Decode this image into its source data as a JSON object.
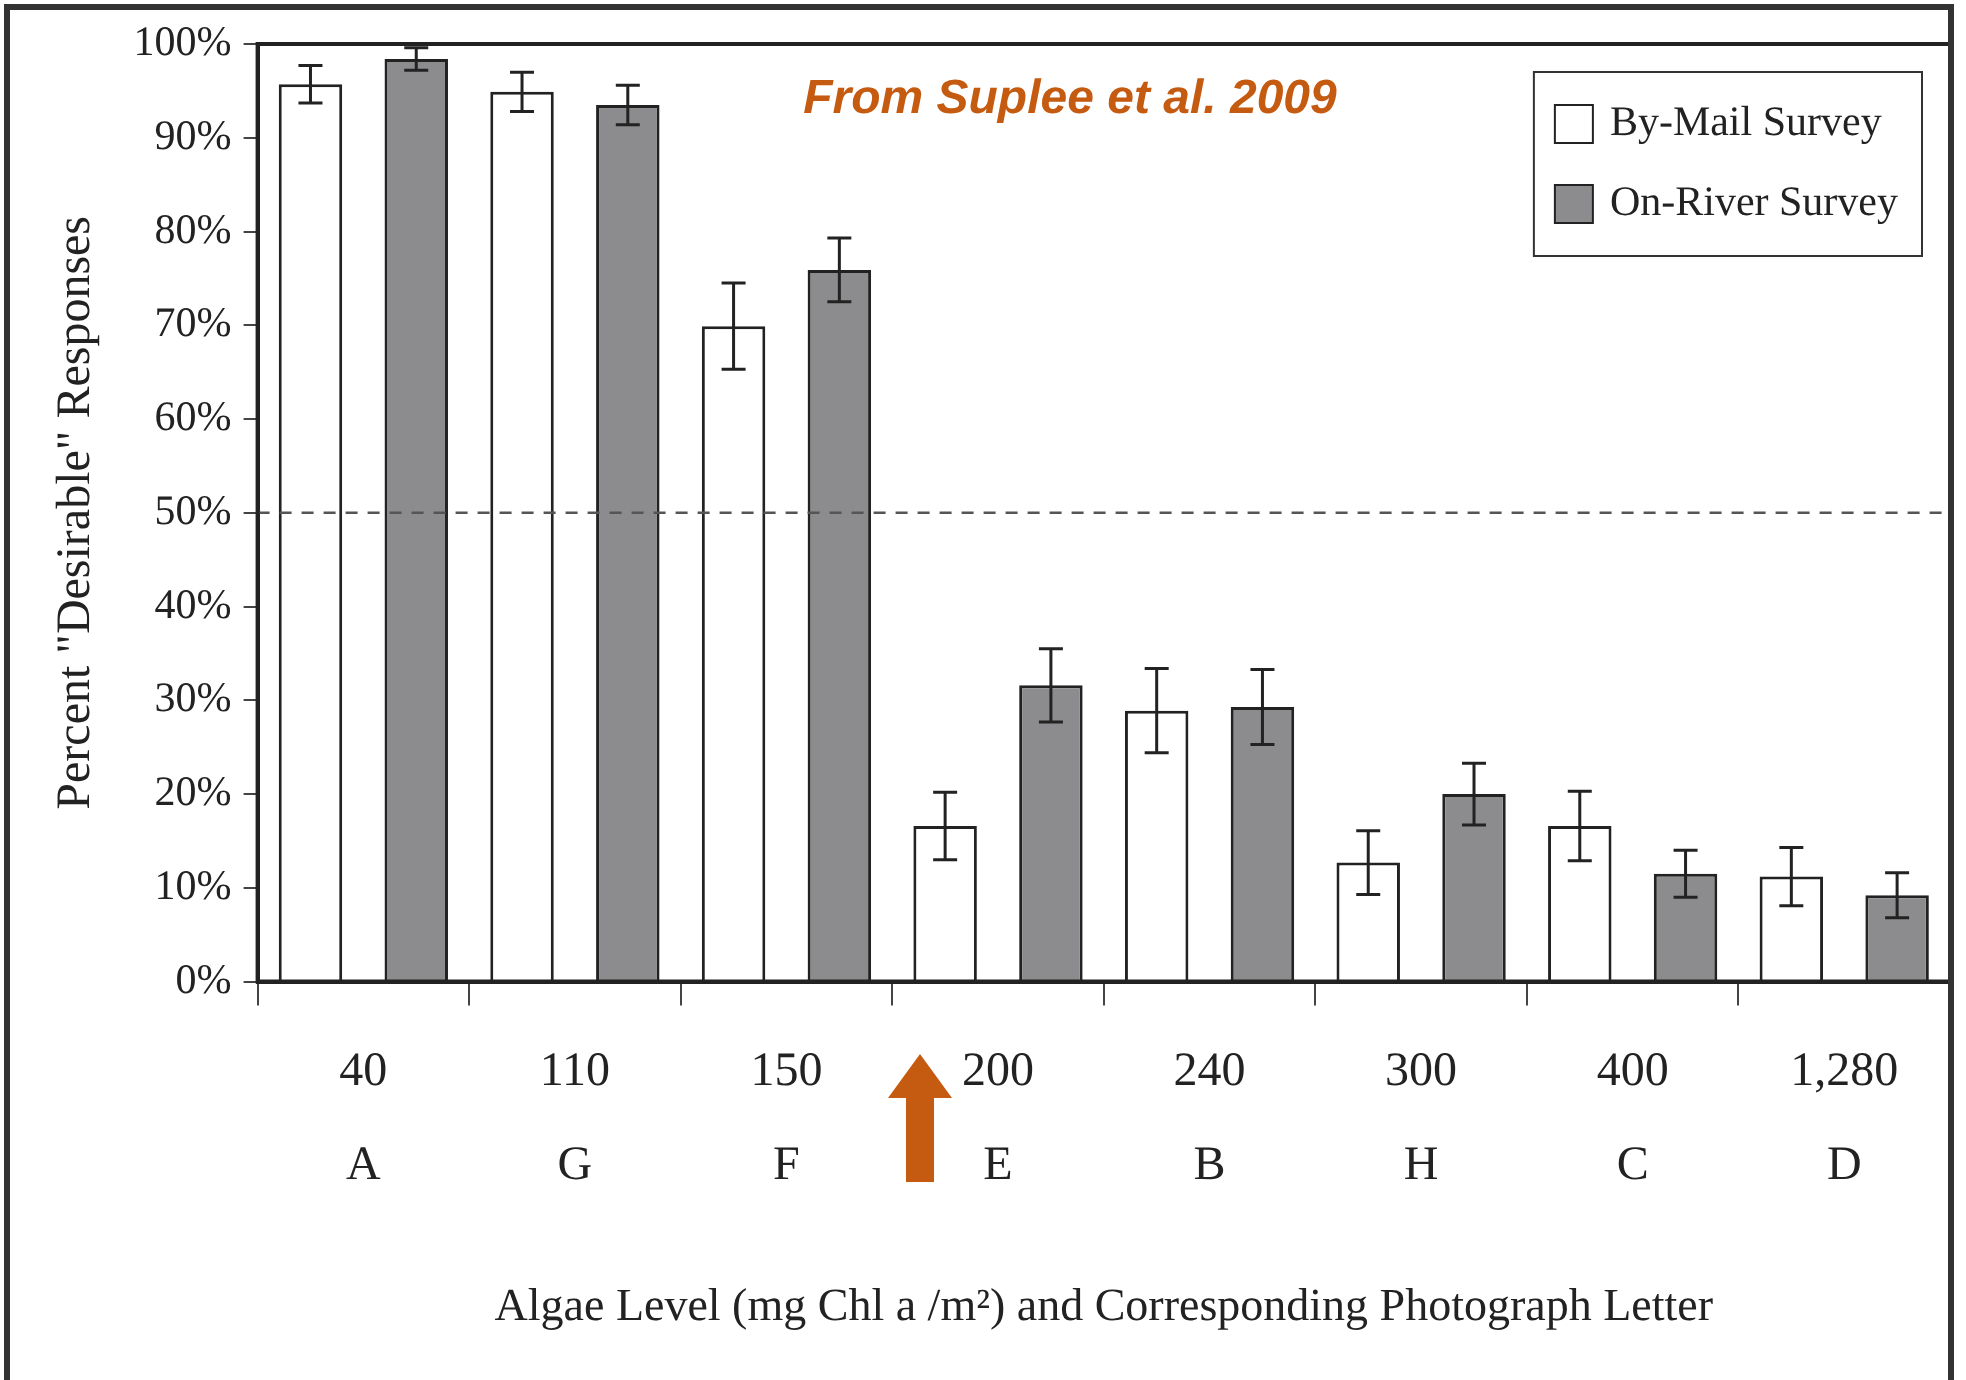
{
  "chart_data": {
    "type": "bar",
    "categories": [
      "40\nA",
      "110\nG",
      "150\nF",
      "200\nE",
      "240\nB",
      "300\nH",
      "400\nC",
      "1,280\nD"
    ],
    "series": [
      {
        "name": "By-Mail Survey",
        "color": "#ffffff",
        "values": [
          95.7,
          94.9,
          69.9,
          16.6,
          28.9,
          12.7,
          16.6,
          11.2
        ],
        "errors": [
          2,
          2.1,
          4.6,
          3.6,
          4.5,
          3.4,
          3.7,
          3.1
        ]
      },
      {
        "name": "On-River Survey",
        "color": "#8c8c8e",
        "values": [
          98.4,
          93.5,
          75.9,
          31.6,
          29.3,
          20.0,
          11.5,
          9.2
        ],
        "errors": [
          1.2,
          2.1,
          3.4,
          3.9,
          4,
          3.3,
          2.5,
          2.4
        ]
      }
    ],
    "ylabel": "Percent \"Desirable\" Responses",
    "xlabel": "Algae Level (mg Chl a /m²) and Corresponding Photograph Letter",
    "ylim": [
      0,
      100
    ],
    "yticks": [
      {
        "value": 0,
        "label": "0%"
      },
      {
        "value": 10,
        "label": "10%"
      },
      {
        "value": 20,
        "label": "20%"
      },
      {
        "value": 30,
        "label": "30%"
      },
      {
        "value": 40,
        "label": "40%"
      },
      {
        "value": 50,
        "label": "50%"
      },
      {
        "value": 60,
        "label": "60%"
      },
      {
        "value": 70,
        "label": "70%"
      },
      {
        "value": 80,
        "label": "80%"
      },
      {
        "value": 90,
        "label": "90%"
      },
      {
        "value": 100,
        "label": "100%"
      }
    ],
    "ref_lines": [
      {
        "axis": "y",
        "value": 50,
        "label": null,
        "color": "#555555",
        "line_style": "dashed"
      }
    ],
    "annotations": [
      "From Suplee et al. 2009"
    ],
    "legend": "top right",
    "grid": false
  }
}
